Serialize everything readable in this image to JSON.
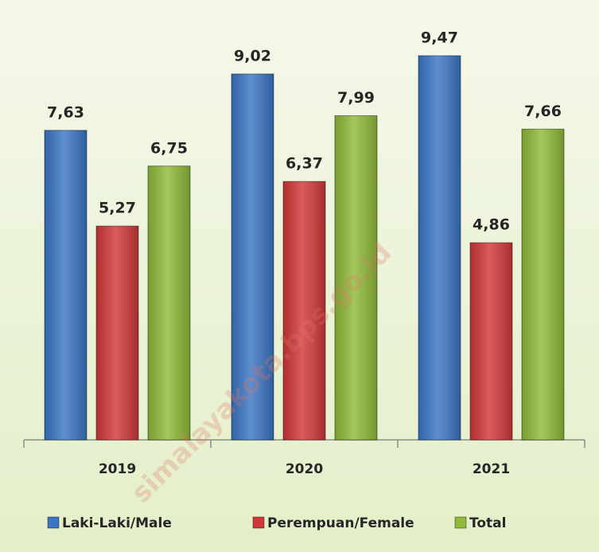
{
  "chart_data": {
    "type": "bar",
    "categories": [
      "2019",
      "2020",
      "2021"
    ],
    "series": [
      {
        "name": "Laki-Laki/Male",
        "color": "#3b76c6",
        "values": [
          7.63,
          9.02,
          9.47
        ],
        "value_labels": [
          "7,63",
          "9,02",
          "9,47"
        ]
      },
      {
        "name": "Perempuan/Female",
        "color": "#d2383a",
        "values": [
          5.27,
          6.37,
          4.86
        ],
        "value_labels": [
          "5,27",
          "6,37",
          "4,86"
        ]
      },
      {
        "name": "Total",
        "color": "#8fbb38",
        "values": [
          6.75,
          7.99,
          7.66
        ],
        "value_labels": [
          "6,75",
          "7,99",
          "7,66"
        ]
      }
    ],
    "ylim": [
      0,
      10
    ],
    "legend": "bottom",
    "watermark": "simalayakota.bps.go.id"
  }
}
